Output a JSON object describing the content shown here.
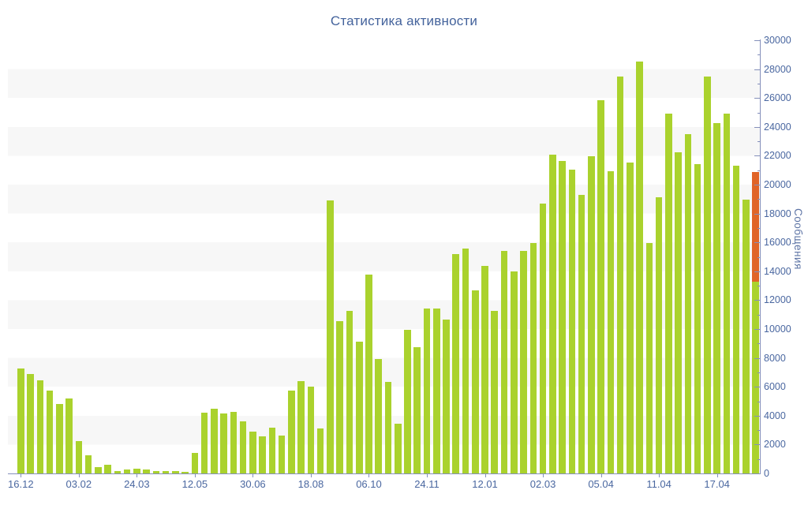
{
  "title": "Статистика активности",
  "y_axis": {
    "title": "Сообщения",
    "min": 0,
    "max": 30000,
    "major_step": 2000,
    "minor_step": 1000
  },
  "x_axis": {
    "labels": [
      {
        "text": "16.12",
        "bar": 0
      },
      {
        "text": "03.02",
        "bar": 6
      },
      {
        "text": "24.03",
        "bar": 12
      },
      {
        "text": "12.05",
        "bar": 18
      },
      {
        "text": "30.06",
        "bar": 24
      },
      {
        "text": "18.08",
        "bar": 30
      },
      {
        "text": "06.10",
        "bar": 36
      },
      {
        "text": "24.11",
        "bar": 42
      },
      {
        "text": "12.01",
        "bar": 48
      },
      {
        "text": "02.03",
        "bar": 54
      },
      {
        "text": "05.04",
        "bar": 60
      },
      {
        "text": "11.04",
        "bar": 66
      },
      {
        "text": "17.04",
        "bar": 72
      }
    ]
  },
  "chart_data": {
    "type": "bar",
    "title": "Статистика активности",
    "xlabel": "",
    "ylabel": "Сообщения",
    "ylim": [
      0,
      30000
    ],
    "grid": "horizontal-bands",
    "legend": "none",
    "values": [
      7250,
      6880,
      6450,
      5720,
      4800,
      5170,
      2260,
      1270,
      450,
      590,
      180,
      270,
      310,
      270,
      180,
      180,
      150,
      90,
      1420,
      4230,
      4460,
      4150,
      4280,
      3610,
      2880,
      2550,
      3190,
      2640,
      5740,
      6410,
      6010,
      3130,
      18900,
      10560,
      11240,
      9140,
      13750,
      7900,
      6330,
      3460,
      9930,
      8740,
      11440,
      11440,
      10650,
      15210,
      15570,
      12690,
      14390,
      11240,
      15390,
      13970,
      15430,
      15970,
      18670,
      22080,
      21620,
      21040,
      19310,
      21980,
      25860,
      20940,
      27470,
      21550,
      28510,
      15940,
      19130,
      24920,
      22220,
      23500,
      21400,
      27500,
      24280,
      24920,
      21310,
      18940,
      20900
    ],
    "current_bar": {
      "index": 76,
      "projected": 20900,
      "actual": 13300
    },
    "x_tick_labels": [
      "16.12",
      "03.02",
      "24.03",
      "12.05",
      "30.06",
      "18.08",
      "06.10",
      "24.11",
      "12.01",
      "02.03",
      "05.04",
      "11.04",
      "17.04"
    ],
    "x_tick_every_n_bars": 6
  },
  "colors": {
    "bar": "#aad22d",
    "current_bar": "#e06428",
    "title": "#44639c",
    "tick_label": "#4a67a0",
    "y_title": "#5d74a5",
    "axis": "#8590bb",
    "band": "#f7f7f7",
    "background": "#ffffff"
  }
}
